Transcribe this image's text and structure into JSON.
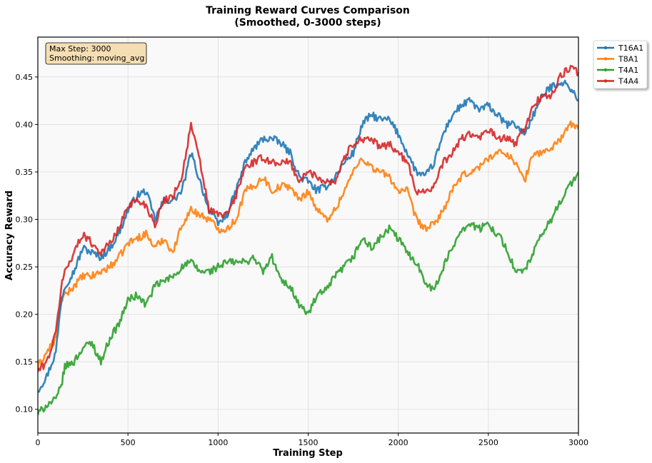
{
  "chart_data": {
    "type": "line",
    "title_line1": "Training Reward Curves Comparison",
    "title_line2": "(Smoothed, 0-3000 steps)",
    "xlabel": "Training Step",
    "ylabel": "Accuracy Reward",
    "xlim": [
      0,
      3000
    ],
    "ylim": [
      0.075,
      0.492
    ],
    "xticks": [
      0,
      500,
      1000,
      1500,
      2000,
      2500,
      3000
    ],
    "xtick_labels": [
      "0",
      "500",
      "1000",
      "1500",
      "2000",
      "2500",
      "3000"
    ],
    "yticks": [
      0.1,
      0.15,
      0.2,
      0.25,
      0.3,
      0.35,
      0.4,
      0.45
    ],
    "ytick_labels": [
      "0.10",
      "0.15",
      "0.20",
      "0.25",
      "0.30",
      "0.35",
      "0.40",
      "0.45"
    ],
    "grid": true,
    "legend_position": "outside-top-right",
    "annotation": {
      "line1": "Max Step: 3000",
      "line2": "Smoothing: moving_avg"
    },
    "series": [
      {
        "name": "T16A1",
        "color": "#1f77b4",
        "x": [
          0,
          50,
          100,
          130,
          150,
          200,
          250,
          300,
          350,
          400,
          450,
          500,
          550,
          600,
          650,
          700,
          750,
          800,
          850,
          900,
          950,
          1000,
          1050,
          1100,
          1150,
          1200,
          1250,
          1300,
          1350,
          1400,
          1450,
          1500,
          1550,
          1600,
          1650,
          1700,
          1750,
          1800,
          1850,
          1900,
          1950,
          2000,
          2050,
          2100,
          2150,
          2200,
          2250,
          2300,
          2350,
          2400,
          2450,
          2500,
          2550,
          2600,
          2650,
          2700,
          2750,
          2800,
          2850,
          2900,
          2950,
          3000
        ],
        "values": [
          0.12,
          0.135,
          0.16,
          0.215,
          0.23,
          0.245,
          0.27,
          0.265,
          0.26,
          0.27,
          0.285,
          0.31,
          0.325,
          0.33,
          0.3,
          0.32,
          0.32,
          0.33,
          0.37,
          0.34,
          0.31,
          0.295,
          0.305,
          0.33,
          0.36,
          0.375,
          0.385,
          0.385,
          0.38,
          0.37,
          0.345,
          0.34,
          0.33,
          0.335,
          0.345,
          0.36,
          0.37,
          0.4,
          0.41,
          0.405,
          0.405,
          0.39,
          0.37,
          0.35,
          0.345,
          0.36,
          0.39,
          0.41,
          0.42,
          0.425,
          0.415,
          0.42,
          0.41,
          0.4,
          0.4,
          0.39,
          0.41,
          0.43,
          0.44,
          0.445,
          0.44,
          0.425
        ]
      },
      {
        "name": "T8A1",
        "color": "#ff7f0e",
        "x": [
          0,
          50,
          100,
          130,
          150,
          200,
          250,
          300,
          350,
          400,
          450,
          500,
          550,
          600,
          650,
          700,
          750,
          800,
          850,
          900,
          950,
          1000,
          1050,
          1100,
          1150,
          1200,
          1250,
          1300,
          1350,
          1400,
          1450,
          1500,
          1550,
          1600,
          1650,
          1700,
          1750,
          1800,
          1850,
          1900,
          1950,
          2000,
          2050,
          2100,
          2150,
          2200,
          2250,
          2300,
          2350,
          2400,
          2450,
          2500,
          2550,
          2600,
          2650,
          2700,
          2750,
          2800,
          2850,
          2900,
          2950,
          3000
        ],
        "values": [
          0.145,
          0.16,
          0.175,
          0.215,
          0.22,
          0.23,
          0.24,
          0.24,
          0.245,
          0.25,
          0.26,
          0.275,
          0.28,
          0.285,
          0.27,
          0.28,
          0.265,
          0.295,
          0.31,
          0.305,
          0.3,
          0.29,
          0.29,
          0.3,
          0.33,
          0.335,
          0.345,
          0.33,
          0.335,
          0.335,
          0.32,
          0.33,
          0.31,
          0.3,
          0.31,
          0.33,
          0.35,
          0.365,
          0.355,
          0.35,
          0.345,
          0.33,
          0.33,
          0.3,
          0.29,
          0.295,
          0.31,
          0.33,
          0.345,
          0.35,
          0.355,
          0.365,
          0.37,
          0.37,
          0.36,
          0.34,
          0.37,
          0.37,
          0.375,
          0.385,
          0.4,
          0.395
        ]
      },
      {
        "name": "T4A1",
        "color": "#2ca02c",
        "x": [
          0,
          50,
          100,
          130,
          150,
          200,
          250,
          300,
          350,
          400,
          450,
          500,
          550,
          600,
          650,
          700,
          750,
          800,
          850,
          900,
          950,
          1000,
          1050,
          1100,
          1150,
          1200,
          1250,
          1300,
          1350,
          1400,
          1450,
          1500,
          1550,
          1600,
          1650,
          1700,
          1750,
          1800,
          1850,
          1900,
          1950,
          2000,
          2050,
          2100,
          2150,
          2200,
          2250,
          2300,
          2350,
          2400,
          2450,
          2500,
          2550,
          2600,
          2650,
          2700,
          2750,
          2800,
          2850,
          2900,
          2950,
          3000
        ],
        "values": [
          0.095,
          0.105,
          0.11,
          0.125,
          0.145,
          0.15,
          0.165,
          0.17,
          0.15,
          0.175,
          0.19,
          0.215,
          0.22,
          0.21,
          0.23,
          0.235,
          0.24,
          0.25,
          0.255,
          0.245,
          0.245,
          0.25,
          0.255,
          0.255,
          0.255,
          0.26,
          0.245,
          0.26,
          0.235,
          0.23,
          0.21,
          0.2,
          0.22,
          0.225,
          0.24,
          0.25,
          0.26,
          0.28,
          0.27,
          0.28,
          0.29,
          0.28,
          0.265,
          0.255,
          0.235,
          0.225,
          0.25,
          0.27,
          0.29,
          0.295,
          0.29,
          0.295,
          0.285,
          0.27,
          0.245,
          0.245,
          0.265,
          0.285,
          0.3,
          0.32,
          0.335,
          0.35
        ]
      },
      {
        "name": "T4A4",
        "color": "#d62728",
        "x": [
          0,
          50,
          100,
          130,
          150,
          200,
          250,
          300,
          350,
          400,
          450,
          500,
          550,
          600,
          650,
          700,
          750,
          800,
          850,
          900,
          950,
          1000,
          1050,
          1100,
          1150,
          1200,
          1250,
          1300,
          1350,
          1400,
          1450,
          1500,
          1550,
          1600,
          1650,
          1700,
          1750,
          1800,
          1850,
          1900,
          1950,
          2000,
          2050,
          2100,
          2150,
          2200,
          2250,
          2300,
          2350,
          2400,
          2450,
          2500,
          2550,
          2600,
          2650,
          2700,
          2750,
          2800,
          2850,
          2900,
          2950,
          3000
        ],
        "values": [
          0.14,
          0.15,
          0.18,
          0.23,
          0.245,
          0.265,
          0.285,
          0.275,
          0.265,
          0.275,
          0.29,
          0.315,
          0.32,
          0.315,
          0.295,
          0.32,
          0.325,
          0.345,
          0.4,
          0.36,
          0.31,
          0.305,
          0.305,
          0.325,
          0.355,
          0.36,
          0.365,
          0.36,
          0.36,
          0.36,
          0.34,
          0.35,
          0.345,
          0.34,
          0.34,
          0.365,
          0.38,
          0.385,
          0.385,
          0.375,
          0.38,
          0.37,
          0.36,
          0.33,
          0.33,
          0.335,
          0.36,
          0.37,
          0.385,
          0.39,
          0.385,
          0.395,
          0.385,
          0.385,
          0.38,
          0.395,
          0.42,
          0.43,
          0.43,
          0.45,
          0.46,
          0.455
        ]
      }
    ]
  }
}
